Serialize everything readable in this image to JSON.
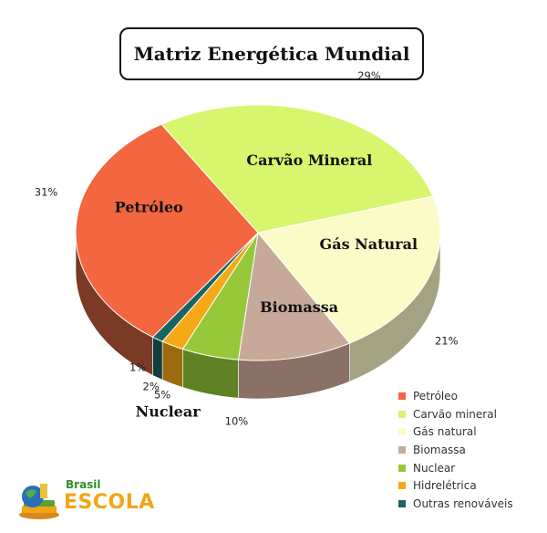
{
  "chart_data": {
    "type": "pie",
    "title": "Matriz Energética Mundial",
    "categories": [
      "Petróleo",
      "Carvão mineral",
      "Gás natural",
      "Biomassa",
      "Nuclear",
      "Hidrelétrica",
      "Outras renováveis"
    ],
    "values": [
      31,
      29,
      21,
      10,
      5,
      2,
      1
    ],
    "value_labels": [
      "31%",
      "29%",
      "21%",
      "10%",
      "5%",
      "2%",
      "1%"
    ],
    "slice_labels": [
      "Petróleo",
      "Carvão Mineral",
      "Gás Natural",
      "Biomassa",
      "Nuclear",
      "",
      ""
    ],
    "colors": [
      "#f26640",
      "#d8f56e",
      "#fbfbc8",
      "#c7a99a",
      "#96c83a",
      "#f5a916",
      "#1b6462"
    ],
    "side_colors": [
      "#7a3a26",
      "#8fa04a",
      "#a3a384",
      "#8a7065",
      "#5f8224",
      "#9c6a0d",
      "#113f3e"
    ],
    "legend_position": "bottom-right",
    "three_d": true
  },
  "logo": {
    "top_text": "Brasil",
    "bottom_text": "ESCOLA"
  }
}
